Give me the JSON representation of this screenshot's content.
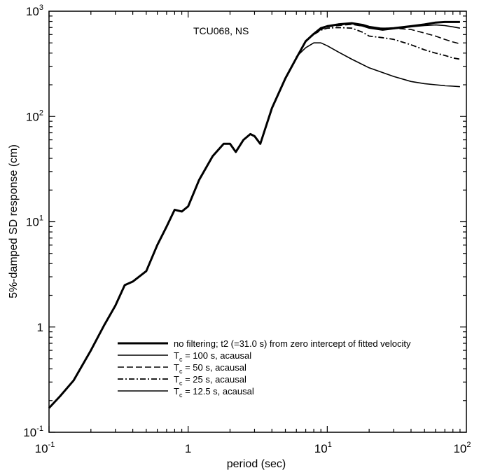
{
  "chart_data": {
    "type": "line",
    "title": "",
    "annotation": "TCU068, NS",
    "xlabel": "period (sec)",
    "ylabel": "5%-damped SD response (cm)",
    "xscale": "log",
    "yscale": "log",
    "xlim": [
      0.1,
      100
    ],
    "ylim": [
      0.1,
      1000
    ],
    "grid": false,
    "legend_position": "bottom-right",
    "x_ticks": [
      {
        "base": "10",
        "exp": "-1"
      },
      {
        "base": "1",
        "exp": ""
      },
      {
        "base": "10",
        "exp": "1"
      },
      {
        "base": "10",
        "exp": "2"
      }
    ],
    "y_ticks": [
      {
        "base": "10",
        "exp": "-1"
      },
      {
        "base": "1",
        "exp": ""
      },
      {
        "base": "10",
        "exp": "1"
      },
      {
        "base": "10",
        "exp": "2"
      },
      {
        "base": "10",
        "exp": "3"
      }
    ],
    "shared_x": [
      0.1,
      0.12,
      0.15,
      0.2,
      0.25,
      0.3,
      0.35,
      0.4,
      0.5,
      0.6,
      0.7,
      0.8,
      0.9,
      1.0,
      1.2,
      1.5,
      1.8,
      2.0,
      2.2,
      2.5,
      2.8,
      3.0,
      3.3,
      4.0,
      5.0,
      6.0
    ],
    "shared_y": [
      0.17,
      0.22,
      0.31,
      0.6,
      1.05,
      1.6,
      2.5,
      2.7,
      3.4,
      6.0,
      9.0,
      13.0,
      12.5,
      14.0,
      25.0,
      42.0,
      55.0,
      55.0,
      46.0,
      60.0,
      68.0,
      65.0,
      55.0,
      120.0,
      230.0,
      360.0
    ],
    "series": [
      {
        "legend": "no filtering; t2 (=31.0 s) from zero intercept of fitted velocity",
        "style": "thick-solid",
        "x": [
          7,
          8,
          9,
          10,
          12,
          15,
          18,
          20,
          25,
          30,
          40,
          50,
          60,
          70,
          80,
          90
        ],
        "y": [
          520,
          610,
          690,
          720,
          750,
          770,
          740,
          710,
          680,
          690,
          720,
          750,
          780,
          790,
          790,
          790
        ]
      },
      {
        "legend_main": "T",
        "legend_sub": "c",
        "legend_rest": " = 100 s, acausal",
        "style": "solid",
        "x": [
          7,
          8,
          9,
          10,
          12,
          15,
          18,
          20,
          25,
          30,
          40,
          50,
          60,
          70,
          80,
          90
        ],
        "y": [
          520,
          610,
          680,
          720,
          740,
          760,
          720,
          690,
          660,
          680,
          710,
          730,
          740,
          730,
          710,
          690
        ]
      },
      {
        "legend_main": "T",
        "legend_sub": "c",
        "legend_rest": " = 50 s, acausal",
        "style": "dashed",
        "x": [
          7,
          8,
          9,
          10,
          12,
          15,
          18,
          20,
          25,
          30,
          40,
          50,
          60,
          70,
          80,
          90
        ],
        "y": [
          520,
          605,
          670,
          710,
          730,
          750,
          720,
          700,
          690,
          690,
          670,
          620,
          580,
          540,
          510,
          490
        ]
      },
      {
        "legend_main": "T",
        "legend_sub": "c",
        "legend_rest": " = 25 s, acausal",
        "style": "dash-dot",
        "x": [
          7,
          8,
          9,
          10,
          12,
          15,
          18,
          20,
          25,
          30,
          40,
          50,
          60,
          70,
          80,
          90
        ],
        "y": [
          515,
          600,
          660,
          690,
          700,
          690,
          630,
          580,
          560,
          540,
          480,
          430,
          400,
          380,
          360,
          350
        ]
      },
      {
        "legend_main": "T",
        "legend_sub": "c",
        "legend_rest": " = 12.5 s, acausal",
        "style": "thin-solid",
        "x": [
          6,
          7,
          8,
          9,
          10,
          12,
          15,
          20,
          30,
          40,
          50,
          60,
          70,
          80,
          90
        ],
        "y": [
          370,
          450,
          500,
          500,
          470,
          410,
          350,
          290,
          240,
          215,
          205,
          200,
          196,
          194,
          192
        ]
      }
    ]
  }
}
